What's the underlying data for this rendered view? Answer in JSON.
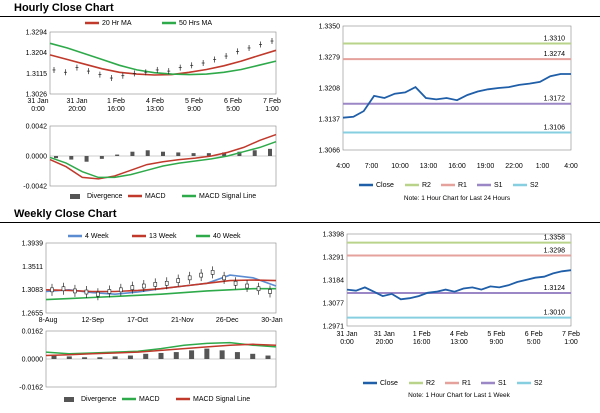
{
  "sections": {
    "hourly_title": "Hourly Close Chart",
    "weekly_title": "Weekly Close Chart"
  },
  "colors": {
    "ma_short": "#c0392b",
    "ma_long": "#2eaa4a",
    "close": "#1f5ea8",
    "r2": "#b9d48a",
    "r1": "#e5a19b",
    "s1": "#9b87c6",
    "s2": "#86cfe0",
    "four_week": "#5b8bd1",
    "hist": "#555555"
  },
  "chart_data": [
    {
      "id": "hourly-price",
      "type": "line",
      "legend": [
        "20 Hr MA",
        "50 Hrs MA"
      ],
      "y_ticks": [
        "1.3294",
        "1.3204",
        "1.3115",
        "1.3026"
      ],
      "ylim": [
        1.3026,
        1.3294
      ],
      "x_ticks": [
        "31 Jan\n0:00",
        "31 Jan\n20:00",
        "1 Feb\n16:00",
        "4 Feb\n13:00",
        "5 Feb\n9:00",
        "6 Feb\n5:00",
        "7 Feb\n1:00"
      ],
      "series": [
        {
          "name": "20 Hr MA",
          "values": [
            1.3195,
            1.3175,
            1.3155,
            1.3135,
            1.312,
            1.3112,
            1.3108,
            1.311,
            1.312,
            1.3132,
            1.3148,
            1.3168,
            1.3192,
            1.3215
          ]
        },
        {
          "name": "50 Hrs MA",
          "values": [
            1.3245,
            1.3225,
            1.32,
            1.3175,
            1.315,
            1.313,
            1.3118,
            1.3112,
            1.311,
            1.3112,
            1.312,
            1.3132,
            1.315,
            1.3168
          ]
        }
      ],
      "price": [
        1.313,
        1.312,
        1.314,
        1.3125,
        1.311,
        1.3095,
        1.3105,
        1.3115,
        1.312,
        1.313,
        1.3125,
        1.314,
        1.315,
        1.316,
        1.3175,
        1.319,
        1.321,
        1.3225,
        1.324,
        1.3255
      ]
    },
    {
      "id": "hourly-macd",
      "type": "line",
      "legend": [
        "Divergence",
        "MACD",
        "MACD Signal Line"
      ],
      "y_ticks": [
        "0.0042",
        "0.0000",
        "-0.0042"
      ],
      "ylim": [
        -0.0042,
        0.0042
      ],
      "series": [
        {
          "name": "MACD",
          "values": [
            -0.0005,
            -0.0015,
            -0.003,
            -0.0032,
            -0.0028,
            -0.002,
            -0.0012,
            -0.0008,
            -0.0005,
            -0.0003,
            0.0,
            0.0005,
            0.0012,
            0.0022,
            0.003
          ]
        },
        {
          "name": "MACD Signal Line",
          "values": [
            -0.0002,
            -0.001,
            -0.0022,
            -0.003,
            -0.003,
            -0.0026,
            -0.002,
            -0.0014,
            -0.001,
            -0.0007,
            -0.0004,
            0.0,
            0.0006,
            0.0012,
            0.002
          ]
        }
      ],
      "divergence": [
        -0.0003,
        -0.0005,
        -0.0008,
        -0.0004,
        0.0002,
        0.0006,
        0.0008,
        0.0006,
        0.0005,
        0.0004,
        0.0004,
        0.0005,
        0.0006,
        0.0008,
        0.001
      ]
    },
    {
      "id": "hourly-levels",
      "type": "line",
      "y_ticks": [
        "1.3350",
        "1.3279",
        "1.3208",
        "1.3137",
        "1.3066"
      ],
      "ylim": [
        1.3066,
        1.335
      ],
      "x_ticks": [
        "4:00",
        "7:00",
        "10:00",
        "13:00",
        "16:00",
        "19:00",
        "22:00",
        "1:00",
        "4:00"
      ],
      "levels": [
        {
          "name": "R2",
          "value": 1.331,
          "label": "1.3310"
        },
        {
          "name": "R1",
          "value": 1.3274,
          "label": "1.3274"
        },
        {
          "name": "S1",
          "value": 1.3172,
          "label": "1.3172"
        },
        {
          "name": "S2",
          "value": 1.3106,
          "label": "1.3106"
        }
      ],
      "close": [
        1.314,
        1.3142,
        1.3155,
        1.319,
        1.3185,
        1.3195,
        1.3198,
        1.321,
        1.3185,
        1.3182,
        1.3185,
        1.318,
        1.3192,
        1.32,
        1.3205,
        1.3208,
        1.321,
        1.3215,
        1.3218,
        1.3222,
        1.3235,
        1.324,
        1.324
      ],
      "legend": [
        "Close",
        "R2",
        "R1",
        "S1",
        "S2"
      ],
      "note": "Note: 1 Hour Chart for Last 24 Hours"
    },
    {
      "id": "weekly-price",
      "type": "line",
      "legend": [
        "4 Week",
        "13 Week",
        "40 Week"
      ],
      "y_ticks": [
        "1.3939",
        "1.3511",
        "1.3083",
        "1.2655"
      ],
      "ylim": [
        1.2655,
        1.3939
      ],
      "x_ticks": [
        "8-Aug",
        "12-Sep",
        "17-Oct",
        "21-Nov",
        "26-Dec",
        "30-Jan"
      ],
      "series": [
        {
          "name": "4 Week",
          "values": [
            1.305,
            1.308,
            1.303,
            1.3,
            1.304,
            1.31,
            1.315,
            1.32,
            1.335,
            1.33,
            1.315
          ]
        },
        {
          "name": "13 Week",
          "values": [
            1.308,
            1.307,
            1.305,
            1.305,
            1.307,
            1.31,
            1.315,
            1.32,
            1.325,
            1.326,
            1.325
          ]
        },
        {
          "name": "40 Week",
          "values": [
            1.29,
            1.292,
            1.294,
            1.296,
            1.298,
            1.3,
            1.303,
            1.306,
            1.308,
            1.31,
            1.31
          ]
        }
      ],
      "candles": [
        1.308,
        1.31,
        1.306,
        1.304,
        1.3,
        1.305,
        1.308,
        1.312,
        1.315,
        1.318,
        1.32,
        1.325,
        1.33,
        1.335,
        1.34,
        1.33,
        1.32,
        1.315,
        1.31,
        1.305
      ]
    },
    {
      "id": "weekly-macd",
      "type": "line",
      "legend": [
        "Divergence",
        "MACD",
        "MACD Signal Line"
      ],
      "y_ticks": [
        "0.0162",
        "0.0000",
        "-0.0162"
      ],
      "ylim": [
        -0.0162,
        0.0162
      ],
      "series": [
        {
          "name": "MACD",
          "values": [
            0.004,
            0.003,
            0.0035,
            0.004,
            0.0045,
            0.006,
            0.008,
            0.009,
            0.0095,
            0.008,
            0.007
          ]
        },
        {
          "name": "MACD Signal Line",
          "values": [
            0.002,
            0.0025,
            0.003,
            0.0035,
            0.004,
            0.005,
            0.006,
            0.007,
            0.008,
            0.0085,
            0.008
          ]
        }
      ],
      "divergence": [
        0.002,
        0.0015,
        0.001,
        0.001,
        0.0015,
        0.002,
        0.003,
        0.0035,
        0.004,
        0.005,
        0.006,
        0.005,
        0.004,
        0.003,
        0.002
      ]
    },
    {
      "id": "weekly-levels",
      "type": "line",
      "y_ticks": [
        "1.3398",
        "1.3291",
        "1.3184",
        "1.3077",
        "1.2971"
      ],
      "ylim": [
        1.2971,
        1.3398
      ],
      "x_ticks": [
        "31 Jan\n0:00",
        "31 Jan\n20:00",
        "1 Feb\n16:00",
        "4 Feb\n13:00",
        "5 Feb\n9:00",
        "6 Feb\n5:00",
        "7 Feb\n1:00"
      ],
      "levels": [
        {
          "name": "R2",
          "value": 1.3358,
          "label": "1.3358"
        },
        {
          "name": "R1",
          "value": 1.3298,
          "label": "1.3298"
        },
        {
          "name": "S1",
          "value": 1.3124,
          "label": "1.3124"
        },
        {
          "name": "S2",
          "value": 1.301,
          "label": "1.3010"
        }
      ],
      "close": [
        1.314,
        1.3135,
        1.315,
        1.313,
        1.311,
        1.312,
        1.3095,
        1.31,
        1.311,
        1.3125,
        1.313,
        1.314,
        1.313,
        1.3145,
        1.315,
        1.314,
        1.3155,
        1.315,
        1.316,
        1.3175,
        1.3185,
        1.3195,
        1.32,
        1.3215,
        1.3225,
        1.323
      ],
      "legend": [
        "Close",
        "R2",
        "R1",
        "S1",
        "S2"
      ],
      "note": "Note: 1 Hour Chart for Last 1 Week"
    }
  ]
}
